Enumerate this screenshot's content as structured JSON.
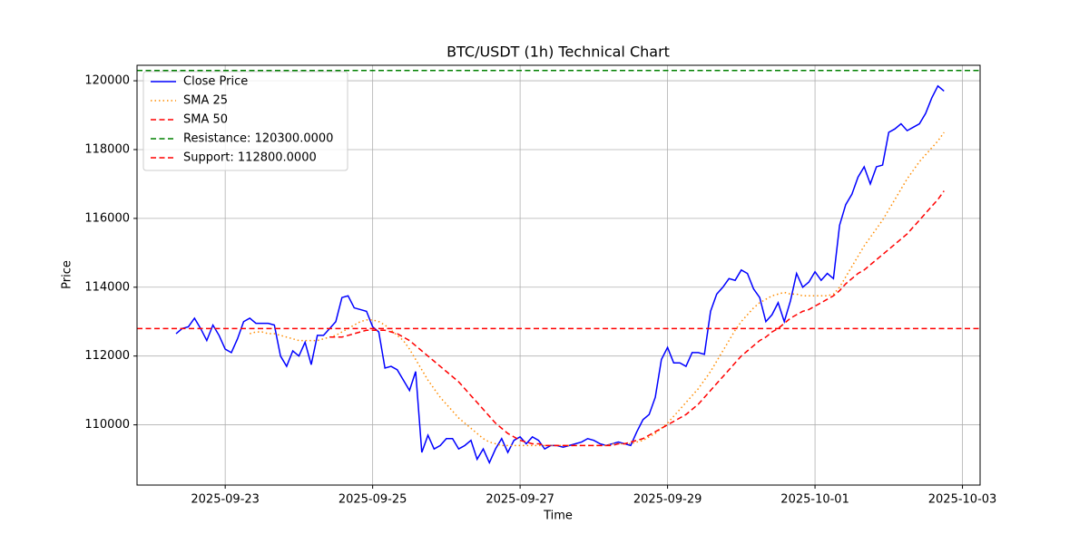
{
  "chart_data": {
    "type": "line",
    "title": "BTC/USDT (1h) Technical Chart",
    "x_label": "Time",
    "y_label": "Price",
    "categories": [
      null,
      null,
      null,
      null,
      null,
      null,
      null,
      null,
      "2025-09-23",
      null,
      null,
      null,
      null,
      null,
      null,
      null,
      null,
      null,
      null,
      null,
      null,
      null,
      null,
      null,
      null,
      null,
      null,
      null,
      null,
      null,
      null,
      null,
      "2025-09-25",
      null,
      null,
      null,
      null,
      null,
      null,
      null,
      null,
      null,
      null,
      null,
      null,
      null,
      null,
      null,
      null,
      null,
      null,
      null,
      null,
      null,
      null,
      null,
      "2025-09-27",
      null,
      null,
      null,
      null,
      null,
      null,
      null,
      null,
      null,
      null,
      null,
      null,
      null,
      null,
      null,
      null,
      null,
      null,
      null,
      null,
      null,
      null,
      null,
      "2025-09-29",
      null,
      null,
      null,
      null,
      null,
      null,
      null,
      null,
      null,
      null,
      null,
      null,
      null,
      null,
      null,
      null,
      null,
      null,
      null,
      null,
      null,
      null,
      null,
      "2025-10-01",
      null,
      null,
      null,
      null,
      null,
      null,
      null,
      null,
      null,
      null,
      null,
      null,
      null,
      null,
      null,
      null,
      null,
      null,
      null,
      null,
      null,
      null,
      null,
      "2025-10-03"
    ],
    "series": [
      {
        "name": "Close Price",
        "color": "#0000ff",
        "style": "solid",
        "values": [
          112650,
          112800,
          112850,
          113100,
          112800,
          112450,
          112900,
          112600,
          112200,
          112100,
          112500,
          113000,
          113100,
          112950,
          112950,
          112950,
          112900,
          112000,
          111700,
          112150,
          112000,
          112400,
          111750,
          112600,
          112600,
          112800,
          113000,
          113700,
          113750,
          113400,
          113350,
          113300,
          112850,
          112700,
          111650,
          111700,
          111600,
          111300,
          111000,
          111550,
          109200,
          109700,
          109300,
          109400,
          109600,
          109600,
          109300,
          109400,
          109550,
          109000,
          109300,
          108900,
          109300,
          109600,
          109200,
          109550,
          109650,
          109450,
          109650,
          109550,
          109300,
          109400,
          109400,
          109350,
          109400,
          109450,
          109500,
          109600,
          109550,
          109450,
          109400,
          109450,
          109500,
          109450,
          109400,
          109800,
          110150,
          110300,
          110800,
          111900,
          112250,
          111800,
          111800,
          111700,
          112100,
          112100,
          112050,
          113300,
          113800,
          114000,
          114250,
          114200,
          114500,
          114400,
          113950,
          113700,
          113000,
          113200,
          113550,
          113000,
          113600,
          114400,
          114000,
          114150,
          114450,
          114200,
          114400,
          114250,
          115800,
          116400,
          116700,
          117200,
          117500,
          117000,
          117500,
          117550,
          118500,
          118600,
          118750,
          118550,
          118650,
          118750,
          119050,
          119500,
          119850,
          119700,
          null,
          null,
          null
        ]
      },
      {
        "name": "SMA 25",
        "color": "#ff8c00",
        "style": "dotted",
        "values": [
          null,
          null,
          null,
          null,
          null,
          null,
          null,
          null,
          null,
          null,
          null,
          null,
          112650,
          112700,
          112700,
          112650,
          112650,
          112600,
          112550,
          112500,
          112450,
          112450,
          112450,
          112450,
          112500,
          112550,
          112600,
          112700,
          112800,
          112900,
          113000,
          113050,
          113050,
          113000,
          112900,
          112750,
          112600,
          112450,
          112200,
          111900,
          111600,
          111300,
          111050,
          110800,
          110600,
          110400,
          110200,
          110050,
          109900,
          109750,
          109600,
          109500,
          109450,
          109400,
          109400,
          109400,
          109400,
          109400,
          109400,
          109400,
          109400,
          109400,
          109400,
          109400,
          109400,
          109400,
          109400,
          109400,
          109400,
          109400,
          109400,
          109450,
          109450,
          109450,
          109450,
          109500,
          109550,
          109650,
          109750,
          109900,
          110050,
          110250,
          110450,
          110650,
          110850,
          111050,
          111300,
          111550,
          111850,
          112150,
          112450,
          112750,
          113000,
          113200,
          113400,
          113550,
          113650,
          113750,
          113800,
          113850,
          113800,
          113800,
          113750,
          113750,
          113750,
          113750,
          113750,
          113800,
          114000,
          114300,
          114600,
          114900,
          115200,
          115450,
          115700,
          115950,
          116250,
          116550,
          116850,
          117150,
          117400,
          117650,
          117850,
          118050,
          118250,
          118500,
          null,
          null,
          null
        ]
      },
      {
        "name": "SMA 50",
        "color": "#ff0000",
        "style": "dashed",
        "values": [
          null,
          null,
          null,
          null,
          null,
          null,
          null,
          null,
          null,
          null,
          null,
          null,
          null,
          null,
          null,
          null,
          null,
          null,
          null,
          null,
          null,
          null,
          null,
          null,
          null,
          112550,
          112550,
          112550,
          112600,
          112650,
          112700,
          112750,
          112750,
          112750,
          112750,
          112700,
          112650,
          112550,
          112450,
          112300,
          112150,
          112000,
          111850,
          111700,
          111550,
          111400,
          111250,
          111050,
          110850,
          110650,
          110450,
          110250,
          110050,
          109900,
          109750,
          109650,
          109550,
          109500,
          109450,
          109450,
          109400,
          109400,
          109400,
          109400,
          109400,
          109400,
          109400,
          109400,
          109400,
          109400,
          109400,
          109400,
          109450,
          109450,
          109500,
          109550,
          109600,
          109700,
          109800,
          109900,
          110000,
          110100,
          110200,
          110300,
          110450,
          110600,
          110800,
          111000,
          111200,
          111400,
          111600,
          111800,
          112000,
          112150,
          112300,
          112450,
          112550,
          112700,
          112800,
          112950,
          113100,
          113200,
          113300,
          113350,
          113450,
          113550,
          113650,
          113750,
          113900,
          114100,
          114250,
          114400,
          114500,
          114650,
          114800,
          114950,
          115100,
          115250,
          115400,
          115550,
          115750,
          115950,
          116150,
          116350,
          116550,
          116800,
          null,
          null,
          null
        ]
      }
    ],
    "hlines": [
      {
        "name": "Resistance: 120300.0000",
        "value": 120300,
        "color": "#008000",
        "style": "dashed"
      },
      {
        "name": "Support: 112800.0000",
        "value": 112800,
        "color": "#ff0000",
        "style": "dashed"
      }
    ],
    "ylim": [
      108250,
      120450
    ],
    "yticks": [
      110000,
      112000,
      114000,
      116000,
      118000,
      120000
    ],
    "grid": true,
    "legend": "upper left"
  }
}
